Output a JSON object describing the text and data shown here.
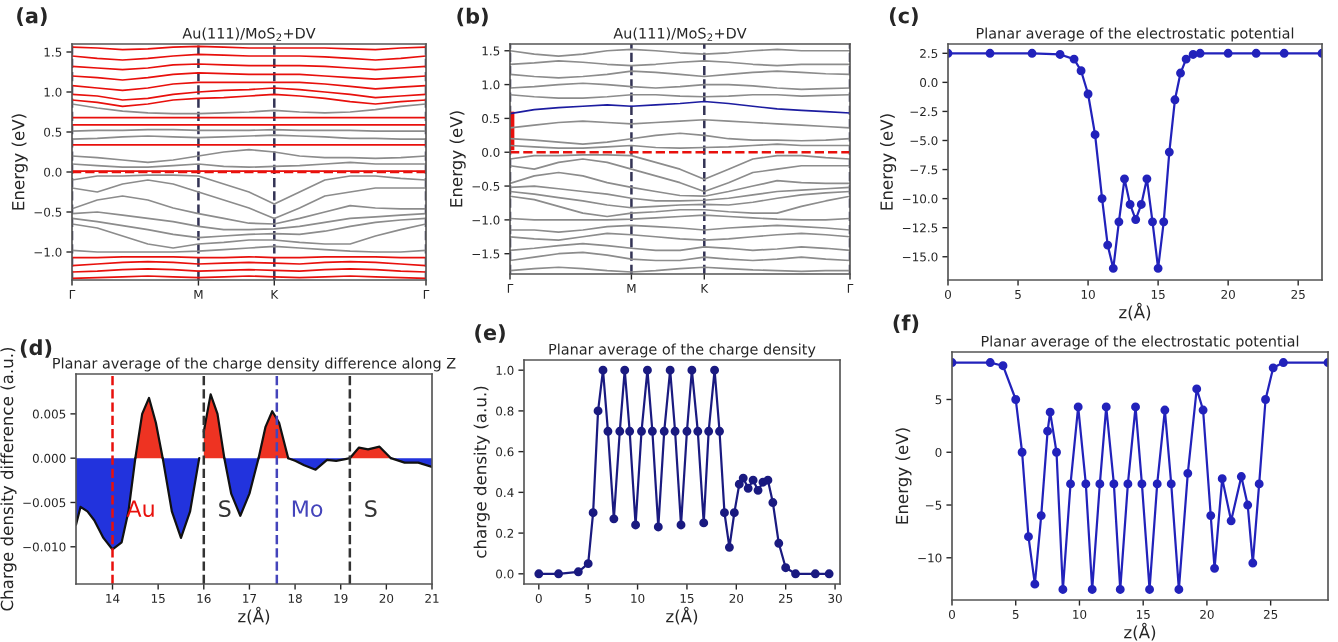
{
  "chart_data": [
    {
      "type": "line",
      "title": "Au(111)/MoS$_{2}$+DV",
      "ylabel": "Energy (eV)",
      "annotations": [
        "(a)"
      ],
      "grid": "x",
      "categories": [
        "Γ",
        null,
        null,
        null,
        null,
        "M",
        null,
        null,
        "K",
        null,
        null,
        null,
        null,
        null,
        "Γ"
      ],
      "ylim": [
        -1.35,
        1.6
      ],
      "yticks": [
        {
          "value": -1.0,
          "label": "−1.0"
        },
        {
          "value": -0.5,
          "label": "−0.5"
        },
        {
          "value": 0,
          "label": "0.0"
        },
        {
          "value": 0.5,
          "label": "0.5"
        },
        {
          "value": 1.0,
          "label": "1.0"
        },
        {
          "value": 1.5,
          "label": "1.5"
        }
      ],
      "ref_lines": [
        {
          "axis": "y",
          "value": 0,
          "color": "#e8100c",
          "line_style": "dashed"
        }
      ],
      "series": [
        {
          "color": "#e8100c",
          "values": [
            -1.33,
            -1.32,
            -1.31,
            -1.3,
            -1.31,
            -1.32,
            -1.31,
            -1.3,
            -1.31,
            -1.32,
            -1.31,
            -1.3,
            -1.31,
            -1.32,
            -1.33
          ]
        },
        {
          "color": "#e8100c",
          "values": [
            -1.25,
            -1.24,
            -1.22,
            -1.21,
            -1.22,
            -1.24,
            -1.23,
            -1.22,
            -1.23,
            -1.24,
            -1.22,
            -1.21,
            -1.22,
            -1.24,
            -1.25
          ]
        },
        {
          "color": "#e8100c",
          "values": [
            -1.17,
            -1.15,
            -1.13,
            -1.12,
            -1.13,
            -1.15,
            -1.14,
            -1.13,
            -1.14,
            -1.15,
            -1.13,
            -1.12,
            -1.13,
            -1.15,
            -1.17
          ]
        },
        {
          "color": "#e8100c",
          "values": [
            -1.07,
            -1.07,
            -1.06,
            -1.06,
            -1.06,
            -1.07,
            -1.07,
            -1.06,
            -1.07,
            -1.07,
            -1.06,
            -1.06,
            -1.06,
            -1.07,
            -1.07
          ]
        },
        {
          "color": "#8c8c8c",
          "values": [
            -0.98,
            -1.0,
            -1.0,
            -1.0,
            -1.0,
            -0.99,
            -0.97,
            -0.95,
            -0.93,
            -0.95,
            -0.97,
            -0.99,
            -1.0,
            -1.0,
            -0.98
          ]
        },
        {
          "color": "#8c8c8c",
          "values": [
            -0.65,
            -0.7,
            -0.8,
            -0.9,
            -0.95,
            -0.9,
            -0.88,
            -0.85,
            -0.85,
            -0.88,
            -0.9,
            -0.9,
            -0.8,
            -0.72,
            -0.65
          ]
        },
        {
          "color": "#8c8c8c",
          "values": [
            -0.58,
            -0.62,
            -0.67,
            -0.72,
            -0.78,
            -0.82,
            -0.8,
            -0.78,
            -0.77,
            -0.78,
            -0.74,
            -0.68,
            -0.63,
            -0.6,
            -0.58
          ]
        },
        {
          "color": "#8c8c8c",
          "values": [
            -0.52,
            -0.5,
            -0.54,
            -0.58,
            -0.62,
            -0.68,
            -0.72,
            -0.72,
            -0.71,
            -0.68,
            -0.63,
            -0.58,
            -0.56,
            -0.54,
            -0.52
          ]
        },
        {
          "color": "#8c8c8c",
          "values": [
            -0.46,
            -0.35,
            -0.3,
            -0.35,
            -0.45,
            -0.52,
            -0.58,
            -0.64,
            -0.65,
            -0.58,
            -0.5,
            -0.42,
            -0.45,
            -0.46,
            -0.46
          ]
        },
        {
          "color": "#8c8c8c",
          "values": [
            -0.2,
            -0.25,
            -0.15,
            -0.1,
            -0.15,
            -0.25,
            -0.35,
            -0.45,
            -0.58,
            -0.45,
            -0.3,
            -0.25,
            -0.2,
            -0.2,
            -0.2
          ]
        },
        {
          "color": "#8c8c8c",
          "values": [
            -0.1,
            -0.05,
            -0.05,
            -0.04,
            -0.04,
            -0.05,
            -0.15,
            -0.25,
            -0.4,
            -0.25,
            -0.1,
            -0.05,
            -0.05,
            -0.08,
            -0.1
          ]
        },
        {
          "color": "#e8100c",
          "values": [
            0.01,
            0.01,
            0.01,
            0.01,
            0.01,
            0.01,
            0.01,
            0.01,
            0.01,
            0.01,
            0.01,
            0.01,
            0.01,
            0.01,
            0.01
          ]
        },
        {
          "color": "#8c8c8c",
          "values": [
            0.1,
            0.08,
            0.06,
            0.06,
            0.08,
            0.1,
            0.07,
            0.06,
            0.07,
            0.08,
            0.1,
            0.12,
            0.1,
            0.1,
            0.1
          ]
        },
        {
          "color": "#8c8c8c",
          "values": [
            0.2,
            0.18,
            0.15,
            0.12,
            0.15,
            0.2,
            0.25,
            0.28,
            0.25,
            0.2,
            0.18,
            0.18,
            0.17,
            0.18,
            0.2
          ]
        },
        {
          "color": "#e8100c",
          "values": [
            0.34,
            0.34,
            0.34,
            0.34,
            0.34,
            0.34,
            0.34,
            0.34,
            0.34,
            0.34,
            0.34,
            0.34,
            0.34,
            0.34,
            0.34
          ]
        },
        {
          "color": "#8c8c8c",
          "values": [
            0.41,
            0.42,
            0.44,
            0.45,
            0.44,
            0.43,
            0.44,
            0.45,
            0.46,
            0.45,
            0.44,
            0.42,
            0.42,
            0.41,
            0.41
          ]
        },
        {
          "color": "#8c8c8c",
          "values": [
            0.51,
            0.52,
            0.52,
            0.53,
            0.53,
            0.52,
            0.52,
            0.52,
            0.53,
            0.52,
            0.52,
            0.52,
            0.51,
            0.51,
            0.51
          ]
        },
        {
          "color": "#e8100c",
          "values": [
            0.59,
            0.59,
            0.59,
            0.59,
            0.59,
            0.59,
            0.59,
            0.59,
            0.59,
            0.59,
            0.59,
            0.59,
            0.59,
            0.59,
            0.59
          ]
        },
        {
          "color": "#e8100c",
          "values": [
            0.68,
            0.68,
            0.68,
            0.68,
            0.68,
            0.68,
            0.68,
            0.68,
            0.68,
            0.68,
            0.68,
            0.68,
            0.68,
            0.68,
            0.68
          ]
        },
        {
          "color": "#8c8c8c",
          "values": [
            0.85,
            0.8,
            0.76,
            0.74,
            0.73,
            0.73,
            0.74,
            0.75,
            0.77,
            0.75,
            0.74,
            0.75,
            0.78,
            0.82,
            0.85
          ]
        },
        {
          "color": "#e8100c",
          "values": [
            0.9,
            0.87,
            0.82,
            0.85,
            0.9,
            0.92,
            0.93,
            0.95,
            0.97,
            0.95,
            0.92,
            0.88,
            0.85,
            0.88,
            0.9
          ]
        },
        {
          "color": "#e8100c",
          "values": [
            0.97,
            0.95,
            0.9,
            0.92,
            0.97,
            1.0,
            1.02,
            1.03,
            1.05,
            1.03,
            1.0,
            0.97,
            0.93,
            0.95,
            0.97
          ]
        },
        {
          "color": "#e8100c",
          "values": [
            1.08,
            1.05,
            1.02,
            1.05,
            1.1,
            1.12,
            1.12,
            1.12,
            1.12,
            1.12,
            1.1,
            1.07,
            1.04,
            1.06,
            1.08
          ]
        },
        {
          "color": "#e8100c",
          "values": [
            1.2,
            1.18,
            1.15,
            1.18,
            1.22,
            1.24,
            1.23,
            1.22,
            1.22,
            1.22,
            1.2,
            1.18,
            1.16,
            1.18,
            1.2
          ]
        },
        {
          "color": "#e8100c",
          "values": [
            1.32,
            1.3,
            1.28,
            1.3,
            1.34,
            1.35,
            1.34,
            1.33,
            1.33,
            1.33,
            1.32,
            1.3,
            1.28,
            1.3,
            1.32
          ]
        },
        {
          "color": "#e8100c",
          "values": [
            1.45,
            1.42,
            1.4,
            1.42,
            1.45,
            1.47,
            1.46,
            1.45,
            1.45,
            1.45,
            1.44,
            1.42,
            1.4,
            1.42,
            1.45
          ]
        },
        {
          "color": "#e8100c",
          "values": [
            1.56,
            1.55,
            1.53,
            1.54,
            1.56,
            1.57,
            1.56,
            1.55,
            1.55,
            1.55,
            1.55,
            1.54,
            1.53,
            1.55,
            1.56
          ]
        }
      ]
    },
    {
      "type": "line",
      "title": "Au(111)/MoS$_{2}$+DV",
      "ylabel": "Energy (eV)",
      "annotations": [
        "(b)"
      ],
      "grid": "x",
      "categories": [
        "Γ",
        null,
        null,
        null,
        null,
        "M",
        null,
        null,
        "K",
        null,
        null,
        null,
        null,
        null,
        "Γ"
      ],
      "ylim": [
        -1.8,
        1.6
      ],
      "yticks": [
        {
          "value": -1.5,
          "label": "−1.5"
        },
        {
          "value": -1.0,
          "label": "−1.0"
        },
        {
          "value": -0.5,
          "label": "−0.5"
        },
        {
          "value": 0,
          "label": "0.0"
        },
        {
          "value": 0.5,
          "label": "0.5"
        },
        {
          "value": 1.0,
          "label": "1.0"
        },
        {
          "value": 1.5,
          "label": "1.5"
        }
      ],
      "ref_lines": [
        {
          "axis": "y",
          "value": 0,
          "color": "#e8100c",
          "line_style": "dashed"
        }
      ],
      "series": [
        {
          "color": "#8c8c8c",
          "values": [
            -1.75,
            -1.72,
            -1.7,
            -1.72,
            -1.75,
            -1.77,
            -1.75,
            -1.72,
            -1.7,
            -1.72,
            -1.74,
            -1.75,
            -1.76,
            -1.75,
            -1.75
          ]
        },
        {
          "color": "#8c8c8c",
          "values": [
            -1.6,
            -1.55,
            -1.5,
            -1.48,
            -1.52,
            -1.58,
            -1.6,
            -1.6,
            -1.55,
            -1.58,
            -1.6,
            -1.58,
            -1.55,
            -1.58,
            -1.6
          ]
        },
        {
          "color": "#8c8c8c",
          "values": [
            -1.45,
            -1.42,
            -1.38,
            -1.35,
            -1.38,
            -1.42,
            -1.45,
            -1.45,
            -1.4,
            -1.42,
            -1.45,
            -1.43,
            -1.4,
            -1.42,
            -1.45
          ]
        },
        {
          "color": "#8c8c8c",
          "values": [
            -1.25,
            -1.28,
            -1.3,
            -1.25,
            -1.2,
            -1.22,
            -1.25,
            -1.28,
            -1.3,
            -1.28,
            -1.25,
            -1.22,
            -1.2,
            -1.22,
            -1.25
          ]
        },
        {
          "color": "#8c8c8c",
          "values": [
            -1.15,
            -1.15,
            -1.18,
            -1.15,
            -1.1,
            -1.08,
            -1.1,
            -1.12,
            -1.15,
            -1.12,
            -1.1,
            -1.08,
            -1.1,
            -1.12,
            -1.15
          ]
        },
        {
          "color": "#8c8c8c",
          "values": [
            -0.98,
            -1.0,
            -1.0,
            -1.0,
            -1.0,
            -0.99,
            -0.97,
            -0.95,
            -0.93,
            -0.95,
            -0.97,
            -0.99,
            -1.0,
            -1.0,
            -0.98
          ]
        },
        {
          "color": "#8c8c8c",
          "values": [
            -0.65,
            -0.7,
            -0.8,
            -0.9,
            -0.95,
            -0.9,
            -0.88,
            -0.85,
            -0.85,
            -0.88,
            -0.9,
            -0.9,
            -0.8,
            -0.72,
            -0.65
          ]
        },
        {
          "color": "#8c8c8c",
          "values": [
            -0.58,
            -0.62,
            -0.67,
            -0.72,
            -0.78,
            -0.82,
            -0.8,
            -0.78,
            -0.77,
            -0.78,
            -0.74,
            -0.68,
            -0.63,
            -0.6,
            -0.58
          ]
        },
        {
          "color": "#8c8c8c",
          "values": [
            -0.52,
            -0.5,
            -0.54,
            -0.58,
            -0.62,
            -0.68,
            -0.72,
            -0.72,
            -0.71,
            -0.68,
            -0.63,
            -0.58,
            -0.56,
            -0.54,
            -0.52
          ]
        },
        {
          "color": "#8c8c8c",
          "values": [
            -0.46,
            -0.35,
            -0.3,
            -0.35,
            -0.45,
            -0.52,
            -0.58,
            -0.64,
            -0.65,
            -0.58,
            -0.5,
            -0.42,
            -0.45,
            -0.46,
            -0.46
          ]
        },
        {
          "color": "#8c8c8c",
          "values": [
            -0.2,
            -0.25,
            -0.15,
            -0.1,
            -0.15,
            -0.25,
            -0.35,
            -0.45,
            -0.58,
            -0.45,
            -0.3,
            -0.25,
            -0.2,
            -0.2,
            -0.2
          ]
        },
        {
          "color": "#8c8c8c",
          "values": [
            -0.1,
            -0.05,
            -0.05,
            -0.04,
            -0.04,
            -0.05,
            -0.15,
            -0.25,
            -0.4,
            -0.25,
            -0.1,
            -0.05,
            -0.05,
            -0.08,
            -0.1
          ]
        },
        {
          "color": "#8c8c8c",
          "values": [
            0.1,
            0.08,
            0.06,
            0.06,
            0.08,
            0.1,
            0.07,
            0.06,
            0.07,
            0.08,
            0.1,
            0.12,
            0.1,
            0.1,
            0.1
          ]
        },
        {
          "color": "#8c8c8c",
          "values": [
            0.2,
            0.18,
            0.15,
            0.12,
            0.15,
            0.2,
            0.25,
            0.28,
            0.25,
            0.2,
            0.18,
            0.18,
            0.17,
            0.18,
            0.2
          ]
        },
        {
          "color": "#8c8c8c",
          "values": [
            0.36,
            0.4,
            0.44,
            0.46,
            0.44,
            0.42,
            0.44,
            0.46,
            0.48,
            0.46,
            0.44,
            0.42,
            0.4,
            0.38,
            0.36
          ]
        },
        {
          "color": "#1c1ca0",
          "values": [
            0.57,
            0.63,
            0.66,
            0.68,
            0.7,
            0.68,
            0.7,
            0.72,
            0.75,
            0.72,
            0.68,
            0.64,
            0.62,
            0.6,
            0.58
          ]
        },
        {
          "color": "#8c8c8c",
          "values": [
            0.85,
            0.82,
            0.8,
            0.8,
            0.82,
            0.85,
            0.85,
            0.83,
            0.82,
            0.83,
            0.85,
            0.85,
            0.83,
            0.84,
            0.85
          ]
        },
        {
          "color": "#8c8c8c",
          "values": [
            0.95,
            0.97,
            1.0,
            1.02,
            1.0,
            0.97,
            0.95,
            0.97,
            1.0,
            1.0,
            0.98,
            0.95,
            0.93,
            0.94,
            0.95
          ]
        },
        {
          "color": "#8c8c8c",
          "values": [
            1.15,
            1.12,
            1.1,
            1.12,
            1.15,
            1.2,
            1.18,
            1.15,
            1.12,
            1.15,
            1.18,
            1.2,
            1.18,
            1.16,
            1.15
          ]
        },
        {
          "color": "#8c8c8c",
          "values": [
            1.3,
            1.32,
            1.35,
            1.33,
            1.3,
            1.28,
            1.3,
            1.33,
            1.35,
            1.33,
            1.3,
            1.28,
            1.3,
            1.3,
            1.3
          ]
        },
        {
          "color": "#8c8c8c",
          "values": [
            1.5,
            1.45,
            1.42,
            1.45,
            1.5,
            1.52,
            1.5,
            1.47,
            1.45,
            1.47,
            1.5,
            1.52,
            1.5,
            1.5,
            1.5
          ]
        },
        {
          "type": "bar",
          "color": "#e8100c",
          "base": [
            0.03,
            null,
            null,
            null,
            null,
            null,
            null,
            null,
            null,
            null,
            null,
            null,
            null,
            null,
            null
          ],
          "values": [
            0.57,
            null,
            null,
            null,
            null,
            null,
            null,
            null,
            null,
            null,
            null,
            null,
            null,
            null,
            null
          ]
        }
      ]
    },
    {
      "type": "line",
      "title": "Planar average of the electrostatic potential",
      "xlabel": "z(Å)",
      "ylabel": "Energy (eV)",
      "annotations": [
        "(c)"
      ],
      "marker": "circle",
      "x": [
        0,
        3,
        6,
        8,
        9,
        9.5,
        10,
        10.5,
        11,
        11.4,
        11.8,
        12.2,
        12.6,
        13.0,
        13.4,
        13.8,
        14.2,
        14.6,
        15.0,
        15.4,
        15.8,
        16.2,
        16.6,
        17,
        17.5,
        18,
        20,
        22,
        24,
        26.7
      ],
      "xlim": [
        0,
        26.7
      ],
      "xticks": [
        0,
        5,
        10,
        15,
        20,
        25
      ],
      "ylim": [
        -17,
        3.3
      ],
      "yticks": [
        {
          "value": -15,
          "label": "−15.0"
        },
        {
          "value": -12.5,
          "label": "−12.5"
        },
        {
          "value": -10,
          "label": "−10.0"
        },
        {
          "value": -7.5,
          "label": "−7.5"
        },
        {
          "value": -5,
          "label": "−5.0"
        },
        {
          "value": -2.5,
          "label": "−2.5"
        },
        {
          "value": 0,
          "label": "0.0"
        },
        {
          "value": 2.5,
          "label": "2.5"
        }
      ],
      "series": [
        {
          "color": "#2222bb",
          "values": [
            2.5,
            2.5,
            2.5,
            2.4,
            2.0,
            1.0,
            -1.0,
            -4.5,
            -10,
            -14,
            -16,
            -12,
            -8.3,
            -10.5,
            -11.8,
            -10.5,
            -8.3,
            -12,
            -16,
            -12,
            -6,
            -1.5,
            0.8,
            2.0,
            2.4,
            2.5,
            2.5,
            2.5,
            2.5,
            2.5
          ]
        }
      ]
    },
    {
      "type": "area",
      "title": "Planar average of the charge density difference along Z",
      "xlabel": "z(Å)",
      "ylabel": "Charge density difference (a.u.)",
      "annotations": [
        "(d)"
      ],
      "x": [
        13.2,
        13.3,
        13.45,
        13.6,
        13.8,
        14.0,
        14.2,
        14.35,
        14.5,
        14.65,
        14.8,
        14.95,
        15.1,
        15.3,
        15.5,
        15.7,
        15.9,
        16.0,
        16.15,
        16.3,
        16.45,
        16.6,
        16.8,
        17.0,
        17.2,
        17.35,
        17.5,
        17.65,
        17.85,
        18.0,
        18.2,
        18.45,
        18.7,
        18.9,
        19.1,
        19.2,
        19.4,
        19.6,
        19.85,
        20.1,
        20.4,
        20.7,
        21.0
      ],
      "xlim": [
        13.2,
        21
      ],
      "xticks": [
        14,
        15,
        16,
        17,
        18,
        19,
        20,
        21
      ],
      "ylim": [
        -0.0142,
        0.0095
      ],
      "yticks": [
        {
          "value": -0.01,
          "label": "−0.010"
        },
        {
          "value": -0.005,
          "label": "−0.005"
        },
        {
          "value": 0,
          "label": "0.000"
        },
        {
          "value": 0.005,
          "label": "0.005"
        }
      ],
      "ref_lines": [
        {
          "axis": "x",
          "value": 14,
          "label": "Au",
          "color": "#e8100c",
          "line_style": "dashed"
        },
        {
          "axis": "x",
          "value": 16,
          "label": "S",
          "color": "#333333",
          "line_style": "dashed"
        },
        {
          "axis": "x",
          "value": 17.6,
          "label": "Mo",
          "color": "#4444bb",
          "line_style": "dashed"
        },
        {
          "axis": "x",
          "value": 19.2,
          "label": "S",
          "color": "#333333",
          "line_style": "dashed"
        }
      ],
      "series": [
        {
          "color": "#ee3322",
          "values": [
            null,
            null,
            null,
            null,
            null,
            null,
            null,
            null,
            0,
            0.005,
            0.0068,
            0.004,
            0,
            null,
            null,
            null,
            null,
            0.003,
            0.0072,
            0.005,
            0,
            null,
            null,
            null,
            0,
            0.0035,
            0.0053,
            0.004,
            0,
            null,
            null,
            null,
            null,
            null,
            null,
            0,
            0.0012,
            0.001,
            0.0013,
            0,
            null,
            null,
            null
          ]
        },
        {
          "color": "#2233dd",
          "values": [
            -0.0075,
            -0.0055,
            -0.006,
            -0.007,
            -0.009,
            -0.0103,
            -0.0095,
            -0.006,
            0,
            null,
            null,
            null,
            0,
            -0.006,
            -0.009,
            -0.006,
            0,
            null,
            null,
            null,
            0,
            -0.004,
            -0.0065,
            -0.004,
            0,
            null,
            null,
            null,
            0,
            -0.0003,
            -0.0008,
            -0.0013,
            -0.0002,
            -0.0003,
            -0.0001,
            0,
            null,
            null,
            null,
            0,
            -0.0005,
            -0.0005,
            -0.001
          ]
        }
      ]
    },
    {
      "type": "line",
      "title": "Planar average of the charge density",
      "xlabel": "z(Å)",
      "ylabel": "charge density (a.u.)",
      "annotations": [
        "(e)"
      ],
      "marker": "circle",
      "x": [
        0,
        2,
        4,
        5,
        5.5,
        6.0,
        6.5,
        7.0,
        7.6,
        8.2,
        8.7,
        9.2,
        9.8,
        10.4,
        11.0,
        11.5,
        12.1,
        12.7,
        13.3,
        13.8,
        14.4,
        15.0,
        15.5,
        16.1,
        16.7,
        17.2,
        17.8,
        18.3,
        18.8,
        19.3,
        19.8,
        20.3,
        20.7,
        21.2,
        21.7,
        22.2,
        22.7,
        23.2,
        23.7,
        24.3,
        25,
        26,
        28,
        29.4
      ],
      "xlim": [
        -1.5,
        30.5
      ],
      "xticks": [
        0,
        5,
        10,
        15,
        20,
        25,
        30
      ],
      "ylim": [
        -0.05,
        1.05
      ],
      "yticks": [
        {
          "value": 0,
          "label": "0.0"
        },
        {
          "value": 0.2,
          "label": "0.2"
        },
        {
          "value": 0.4,
          "label": "0.4"
        },
        {
          "value": 0.6,
          "label": "0.6"
        },
        {
          "value": 0.8,
          "label": "0.8"
        },
        {
          "value": 1.0,
          "label": "1.0"
        }
      ],
      "series": [
        {
          "color": "#1a1a80",
          "values": [
            0,
            0,
            0.01,
            0.05,
            0.3,
            0.8,
            1.0,
            0.7,
            0.27,
            0.7,
            1.0,
            0.7,
            0.24,
            0.7,
            1.0,
            0.7,
            0.23,
            0.7,
            1.0,
            0.7,
            0.24,
            0.7,
            1.0,
            0.7,
            0.25,
            0.7,
            1.0,
            0.7,
            0.3,
            0.13,
            0.3,
            0.44,
            0.47,
            0.42,
            0.46,
            0.41,
            0.45,
            0.46,
            0.35,
            0.15,
            0.03,
            0,
            0,
            0
          ]
        }
      ]
    },
    {
      "type": "line",
      "title": "Planar average of the electrostatic potential",
      "xlabel": "z(Å)",
      "ylabel": "Energy (eV)",
      "annotations": [
        "(f)"
      ],
      "marker": "circle",
      "x": [
        0,
        3,
        4,
        5,
        5.5,
        6,
        6.5,
        7,
        7.5,
        7.7,
        8.2,
        8.7,
        9.3,
        9.9,
        10.5,
        11.0,
        11.6,
        12.1,
        12.7,
        13.2,
        13.8,
        14.4,
        14.9,
        15.5,
        16.1,
        16.7,
        17.2,
        17.8,
        18.5,
        19.2,
        19.7,
        20.3,
        20.6,
        21.2,
        21.9,
        22.7,
        23.2,
        23.6,
        24.1,
        24.6,
        25.2,
        26,
        29.5
      ],
      "xlim": [
        0,
        29.5
      ],
      "xticks": [
        0,
        5,
        10,
        15,
        20,
        25
      ],
      "ylim": [
        -14,
        9.5
      ],
      "yticks": [
        {
          "value": -10,
          "label": "−10"
        },
        {
          "value": -5,
          "label": "−5"
        },
        0,
        5
      ],
      "series": [
        {
          "color": "#2222bb",
          "values": [
            8.5,
            8.5,
            8.2,
            5,
            0,
            -8,
            -12.5,
            -6,
            2,
            3.8,
            0,
            -13,
            -3,
            4.3,
            -3,
            -13,
            -3,
            4.3,
            -3,
            -13,
            -3,
            4.3,
            -3,
            -13,
            -3,
            4.0,
            -3,
            -13,
            -2,
            6,
            4,
            -6,
            -11,
            -2.5,
            -6.5,
            -2.3,
            -5,
            -10.5,
            -3,
            5,
            8,
            8.5,
            8.5
          ]
        }
      ]
    }
  ]
}
